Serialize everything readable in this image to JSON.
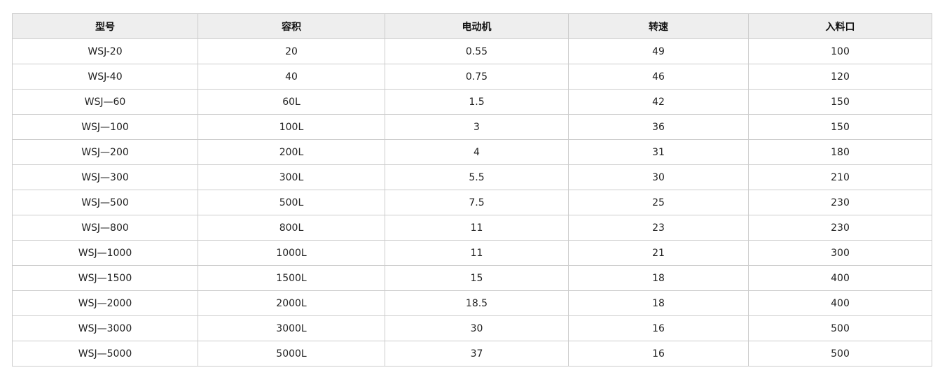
{
  "headers": [
    "型号",
    "容积",
    "电动机",
    "转速",
    "入料口"
  ],
  "rows": [
    [
      "WSJ-20",
      "20",
      "0.55",
      "49",
      "100"
    ],
    [
      "WSJ-40",
      "40",
      "0.75",
      "46",
      "120"
    ],
    [
      "WSJ—60",
      "60L",
      "1.5",
      "42",
      "150"
    ],
    [
      "WSJ—100",
      "100L",
      "3",
      "36",
      "150"
    ],
    [
      "WSJ—200",
      "200L",
      "4",
      "31",
      "180"
    ],
    [
      "WSJ—300",
      "300L",
      "5.5",
      "30",
      "210"
    ],
    [
      "WSJ—500",
      "500L",
      "7.5",
      "25",
      "230"
    ],
    [
      "WSJ—800",
      "800L",
      "11",
      "23",
      "230"
    ],
    [
      "WSJ—1000",
      "1000L",
      "11",
      "21",
      "300"
    ],
    [
      "WSJ—1500",
      "1500L",
      "15",
      "18",
      "400"
    ],
    [
      "WSJ—2000",
      "2000L",
      "18.5",
      "18",
      "400"
    ],
    [
      "WSJ—3000",
      "3000L",
      "30",
      "16",
      "500"
    ],
    [
      "WSJ—5000",
      "5000L",
      "37",
      "16",
      "500"
    ]
  ]
}
